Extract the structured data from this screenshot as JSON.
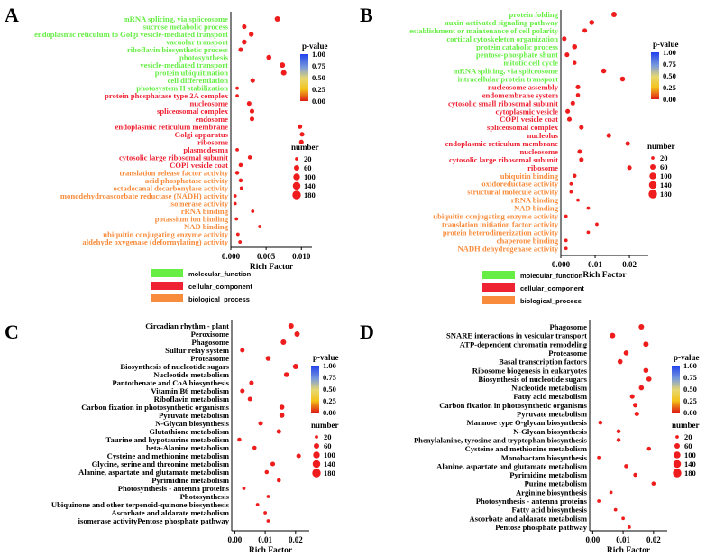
{
  "figure": {
    "legend_pvalue_title": "p-value",
    "legend_number_title": "number",
    "pvalue_ticks": [
      "1.00",
      "0.75",
      "0.50",
      "0.25",
      "0.00"
    ],
    "number_ticks": [
      "20",
      "60",
      "100",
      "140",
      "180"
    ],
    "number_values": [
      20,
      60,
      100,
      140,
      180
    ],
    "colors": {
      "mf": "#66ee44",
      "cc": "#ee2233",
      "bp": "#f98c3c",
      "dot": "#ee1c1c"
    },
    "ontology_legend": [
      {
        "label": "molecular_function",
        "color": "#66ee44"
      },
      {
        "label": "cellular_component",
        "color": "#ee2233"
      },
      {
        "label": "biological_process",
        "color": "#f98c3c"
      }
    ]
  },
  "chart_data": [
    {
      "panel": "A",
      "type": "scatter",
      "xlabel": "Rich Factor",
      "xlim": [
        0,
        0.0115
      ],
      "xticks": [
        "0.000",
        "0.005",
        "0.010"
      ],
      "xtick_values": [
        0,
        0.005,
        0.01
      ],
      "terms": [
        {
          "label": "mRNA splicing, via spliceosome",
          "cat": "mf",
          "x": 0.0066,
          "n": 60
        },
        {
          "label": "sucrose metabolic process",
          "cat": "mf",
          "x": 0.0019,
          "n": 40
        },
        {
          "label": "endoplasmic reticulum to Golgi vesicle-mediated transport",
          "cat": "mf",
          "x": 0.0029,
          "n": 45
        },
        {
          "label": "vacuolar transport",
          "cat": "mf",
          "x": 0.0019,
          "n": 50
        },
        {
          "label": "riboflavin biosynthetic process",
          "cat": "mf",
          "x": 0.0014,
          "n": 40
        },
        {
          "label": "photosynthesis",
          "cat": "mf",
          "x": 0.0054,
          "n": 50
        },
        {
          "label": "vesicle-mediated transport",
          "cat": "mf",
          "x": 0.0073,
          "n": 60
        },
        {
          "label": "protein ubiquitination",
          "cat": "mf",
          "x": 0.0075,
          "n": 60
        },
        {
          "label": "cell differentiation",
          "cat": "mf",
          "x": 0.0031,
          "n": 40
        },
        {
          "label": "photosystem II stabilization",
          "cat": "mf",
          "x": 0.0009,
          "n": 20
        },
        {
          "label": "protein phosphatase type 2A complex",
          "cat": "cc",
          "x": 0.0009,
          "n": 20
        },
        {
          "label": "nucleosome",
          "cat": "cc",
          "x": 0.0026,
          "n": 40
        },
        {
          "label": "spliceosomal complex",
          "cat": "cc",
          "x": 0.003,
          "n": 40
        },
        {
          "label": "endosome",
          "cat": "cc",
          "x": 0.003,
          "n": 40
        },
        {
          "label": "endoplasmic reticulum membrane",
          "cat": "cc",
          "x": 0.0098,
          "n": 40
        },
        {
          "label": "Golgi apparatus",
          "cat": "cc",
          "x": 0.0101,
          "n": 40
        },
        {
          "label": "ribosome",
          "cat": "cc",
          "x": 0.01,
          "n": 40
        },
        {
          "label": "plasmodesma",
          "cat": "cc",
          "x": 0.0009,
          "n": 20
        },
        {
          "label": "cytosolic large ribosomal subunit",
          "cat": "cc",
          "x": 0.0027,
          "n": 30
        },
        {
          "label": "COPI vesicle coat",
          "cat": "cc",
          "x": 0.0014,
          "n": 30
        },
        {
          "label": "translation release factor activity",
          "cat": "bp",
          "x": 0.0009,
          "n": 30
        },
        {
          "label": "acid phosphatase activity",
          "cat": "bp",
          "x": 0.0014,
          "n": 30
        },
        {
          "label": "octadecanal decarbonylase activity",
          "cat": "bp",
          "x": 0.0015,
          "n": 20
        },
        {
          "label": "monodehydroascorbate reductase (NADH) activity",
          "cat": "bp",
          "x": 0.0006,
          "n": 20
        },
        {
          "label": "isomerase activity",
          "cat": "bp",
          "x": 0.0006,
          "n": 20
        },
        {
          "label": "rRNA binding",
          "cat": "bp",
          "x": 0.0031,
          "n": 20
        },
        {
          "label": "potassium ion binding",
          "cat": "bp",
          "x": 0.0008,
          "n": 20
        },
        {
          "label": "NAD binding",
          "cat": "bp",
          "x": 0.0041,
          "n": 20
        },
        {
          "label": "ubiquitin conjugating enzyme activity",
          "cat": "bp",
          "x": 0.001,
          "n": 20
        },
        {
          "label": "aldehyde oxygenase (deformylating) activity",
          "cat": "bp",
          "x": 0.0013,
          "n": 20
        }
      ]
    },
    {
      "panel": "B",
      "type": "scatter",
      "xlabel": "Rich Factor",
      "xlim": [
        0,
        0.0255
      ],
      "xticks": [
        "0.000",
        "0.01",
        "0.02"
      ],
      "xtick_values": [
        0,
        0.01,
        0.02
      ],
      "terms": [
        {
          "label": "protein folding",
          "cat": "mf",
          "x": 0.0155,
          "n": 60
        },
        {
          "label": "auxin-activated signaling pathway",
          "cat": "mf",
          "x": 0.009,
          "n": 50
        },
        {
          "label": "establishment or maintenance of cell polarity",
          "cat": "mf",
          "x": 0.007,
          "n": 40
        },
        {
          "label": "cortical cytoskeleton organization",
          "cat": "mf",
          "x": 0.001,
          "n": 40
        },
        {
          "label": "protein catabolic process",
          "cat": "mf",
          "x": 0.004,
          "n": 50
        },
        {
          "label": "pentose-phosphate shunt",
          "cat": "mf",
          "x": 0.0018,
          "n": 40
        },
        {
          "label": "mitotic cell cycle",
          "cat": "mf",
          "x": 0.004,
          "n": 30
        },
        {
          "label": "mRNA splicing, via spliceosome",
          "cat": "mf",
          "x": 0.0125,
          "n": 50
        },
        {
          "label": "intracellular protein transport",
          "cat": "mf",
          "x": 0.018,
          "n": 50
        },
        {
          "label": "nucleosome assembly",
          "cat": "cc",
          "x": 0.005,
          "n": 40
        },
        {
          "label": "endomembrane system",
          "cat": "cc",
          "x": 0.005,
          "n": 30
        },
        {
          "label": "cytosolic small ribosomal subunit",
          "cat": "cc",
          "x": 0.0035,
          "n": 40
        },
        {
          "label": "cytoplasmic vesicle",
          "cat": "cc",
          "x": 0.002,
          "n": 40
        },
        {
          "label": "COPI vesicle coat",
          "cat": "cc",
          "x": 0.0025,
          "n": 40
        },
        {
          "label": "spliceosomal complex",
          "cat": "cc",
          "x": 0.006,
          "n": 40
        },
        {
          "label": "nucleolus",
          "cat": "cc",
          "x": 0.014,
          "n": 40
        },
        {
          "label": "endoplasmic reticulum membrane",
          "cat": "cc",
          "x": 0.0195,
          "n": 40
        },
        {
          "label": "nucleosome",
          "cat": "cc",
          "x": 0.0055,
          "n": 40
        },
        {
          "label": "cytosolic large ribosomal subunit",
          "cat": "cc",
          "x": 0.006,
          "n": 40
        },
        {
          "label": "ribosome",
          "cat": "cc",
          "x": 0.02,
          "n": 40
        },
        {
          "label": "ubiquitin binding",
          "cat": "bp",
          "x": 0.004,
          "n": 30
        },
        {
          "label": "oxidoreductase activity",
          "cat": "bp",
          "x": 0.003,
          "n": 20
        },
        {
          "label": "structural molecule activity",
          "cat": "bp",
          "x": 0.003,
          "n": 20
        },
        {
          "label": "rRNA binding",
          "cat": "bp",
          "x": 0.005,
          "n": 20
        },
        {
          "label": "NAD binding",
          "cat": "bp",
          "x": 0.008,
          "n": 20
        },
        {
          "label": "ubiquitin conjugating enzyme activity",
          "cat": "bp",
          "x": 0.0015,
          "n": 20
        },
        {
          "label": "translation initiation factor activity",
          "cat": "bp",
          "x": 0.0105,
          "n": 20
        },
        {
          "label": "protein heterodimerization activity",
          "cat": "bp",
          "x": 0.008,
          "n": 20
        },
        {
          "label": "chaperone binding",
          "cat": "bp",
          "x": 0.0015,
          "n": 20
        },
        {
          "label": "NADH dehydrogenase activity",
          "cat": "bp",
          "x": 0.0015,
          "n": 20
        }
      ]
    },
    {
      "panel": "C",
      "type": "scatter",
      "xlabel": "Rich Factor",
      "xlim": [
        -0.001,
        0.0245
      ],
      "xticks": [
        "0.00",
        "0.01",
        "0.02"
      ],
      "xtick_values": [
        0,
        0.01,
        0.02
      ],
      "terms": [
        {
          "label": "Circadian rhythm - plant",
          "x": 0.0185,
          "n": 60
        },
        {
          "label": "Peroxisome",
          "x": 0.0205,
          "n": 60
        },
        {
          "label": "Phagosome",
          "x": 0.016,
          "n": 60
        },
        {
          "label": "Sulfur relay system",
          "x": 0.0025,
          "n": 40
        },
        {
          "label": "Proteasome",
          "x": 0.011,
          "n": 50
        },
        {
          "label": "Biosynthesis of nucleotide sugars",
          "x": 0.02,
          "n": 60
        },
        {
          "label": "Nucleotide metabolism",
          "x": 0.017,
          "n": 50
        },
        {
          "label": "Pantothenate and CoA biosynthesis",
          "x": 0.0055,
          "n": 40
        },
        {
          "label": "Vitamin B6 metabolism",
          "x": 0.0025,
          "n": 40
        },
        {
          "label": "Riboflavin metabolism",
          "x": 0.005,
          "n": 40
        },
        {
          "label": "Carbon fixation in photosynthetic organisms",
          "x": 0.0155,
          "n": 50
        },
        {
          "label": "Pyruvate metabolism",
          "x": 0.0155,
          "n": 50
        },
        {
          "label": "N-Glycan biosynthesis",
          "x": 0.0085,
          "n": 40
        },
        {
          "label": "Glutathione metabolism",
          "x": 0.0145,
          "n": 40
        },
        {
          "label": "Taurine and hypotaurine metabolism",
          "x": 0.0015,
          "n": 30
        },
        {
          "label": "beta-Alanine metabolism",
          "x": 0.0065,
          "n": 30
        },
        {
          "label": "Cysteine and methionine metabolism",
          "x": 0.021,
          "n": 40
        },
        {
          "label": "Glycine, serine and threonine metabolism",
          "x": 0.0125,
          "n": 40
        },
        {
          "label": "Alanine, aspartate and glutamate metabolism",
          "x": 0.0105,
          "n": 30
        },
        {
          "label": "Pyrimidine metabolism",
          "x": 0.0145,
          "n": 30
        },
        {
          "label": "Photosynthesis - antenna proteins",
          "x": 0.003,
          "n": 20
        },
        {
          "label": "Photosynthesis",
          "x": 0.011,
          "n": 20
        },
        {
          "label": "Ubiquinone and other terpenoid-quinone biosynthesis",
          "x": 0.0075,
          "n": 20
        },
        {
          "label": "Ascorbate and aldarate metabolism",
          "x": 0.01,
          "n": 20
        },
        {
          "label": "isomerase activityPentose phosphate pathway",
          "x": 0.011,
          "n": 20
        }
      ]
    },
    {
      "panel": "D",
      "type": "scatter",
      "xlabel": "Rich Factor",
      "xlim": [
        -0.001,
        0.0245
      ],
      "xticks": [
        "0.00",
        "0.01",
        "0.02"
      ],
      "xtick_values": [
        0,
        0.01,
        0.02
      ],
      "terms": [
        {
          "label": "Phagosome",
          "x": 0.016,
          "n": 60
        },
        {
          "label": "SNARE interactions in vesicular transport",
          "x": 0.0065,
          "n": 60
        },
        {
          "label": "ATP-dependent chromatin remodeling",
          "x": 0.0175,
          "n": 60
        },
        {
          "label": "Proteasome",
          "x": 0.011,
          "n": 50
        },
        {
          "label": "Basal transcription factors",
          "x": 0.009,
          "n": 50
        },
        {
          "label": "Ribosome biogenesis in eukaryotes",
          "x": 0.0175,
          "n": 50
        },
        {
          "label": "Biosynthesis of nucleotide sugars",
          "x": 0.0185,
          "n": 50
        },
        {
          "label": "Nucleotide metabolism",
          "x": 0.016,
          "n": 50
        },
        {
          "label": "Fatty acid metabolism",
          "x": 0.013,
          "n": 40
        },
        {
          "label": "Carbon fixation in photosynthetic organisms",
          "x": 0.014,
          "n": 40
        },
        {
          "label": "Pyruvate metabolism",
          "x": 0.0145,
          "n": 40
        },
        {
          "label": "Mannose type O-glycan biosynthesis",
          "x": 0.0025,
          "n": 30
        },
        {
          "label": "N-Glycan biosynthesis",
          "x": 0.0085,
          "n": 30
        },
        {
          "label": "Phenylalanine, tyrosine and tryptophan biosynthesis",
          "x": 0.0085,
          "n": 30
        },
        {
          "label": "Cysteine and methionine metabolism",
          "x": 0.0185,
          "n": 30
        },
        {
          "label": "Monobactam biosynthesis",
          "x": 0.002,
          "n": 20
        },
        {
          "label": "Alanine, aspartate and glutamate metabolism",
          "x": 0.011,
          "n": 30
        },
        {
          "label": "Pyrimidine metabolism",
          "x": 0.014,
          "n": 30
        },
        {
          "label": "Purine metabolism",
          "x": 0.02,
          "n": 30
        },
        {
          "label": "Arginine biosynthesis",
          "x": 0.006,
          "n": 20
        },
        {
          "label": "Photosynthesis - antenna proteins",
          "x": 0.002,
          "n": 20
        },
        {
          "label": "Fatty acid biosynthesis",
          "x": 0.0075,
          "n": 20
        },
        {
          "label": "Ascorbate and aldarate metabolism",
          "x": 0.01,
          "n": 20
        },
        {
          "label": "Pentose phosphate pathway",
          "x": 0.012,
          "n": 20
        }
      ]
    }
  ]
}
